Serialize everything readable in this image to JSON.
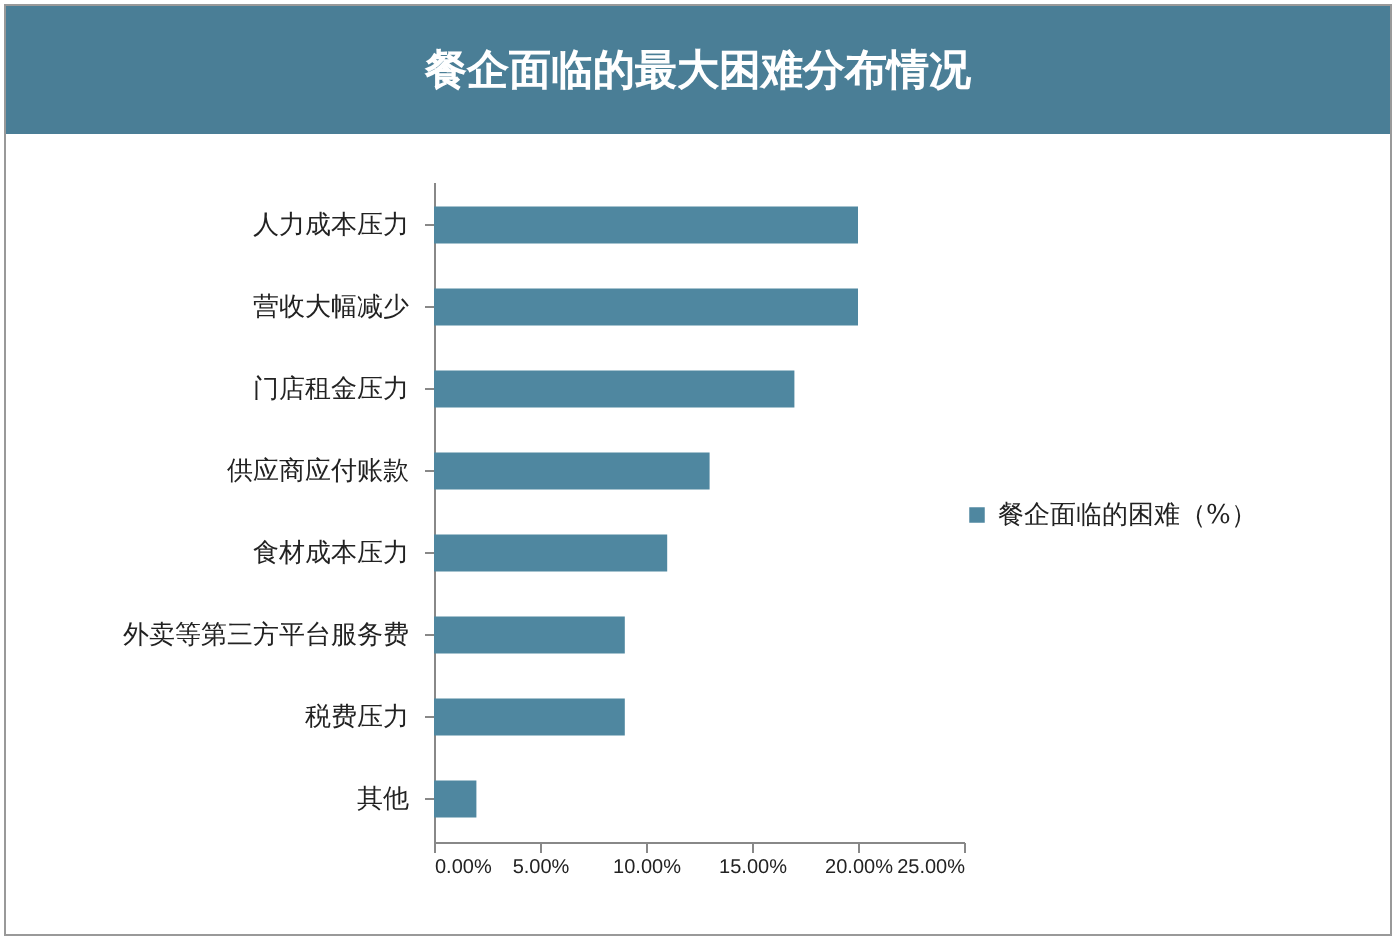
{
  "chart_data": {
    "type": "bar",
    "orientation": "horizontal",
    "title": "餐企面临的最大困难分布情况",
    "categories": [
      "人力成本压力",
      "营收大幅减少",
      "门店租金压力",
      "供应商应付账款",
      "食材成本压力",
      "外卖等第三方平台服务费",
      "税费压力",
      "其他"
    ],
    "series": [
      {
        "name": "餐企面临的困难（%）",
        "color": "#4f87a0",
        "values": [
          20,
          20,
          17,
          13,
          11,
          9,
          9,
          2
        ]
      }
    ],
    "xlim": [
      0,
      25
    ],
    "xticks": [
      {
        "value": 0,
        "label": "0.00%"
      },
      {
        "value": 5,
        "label": "5.00%"
      },
      {
        "value": 10,
        "label": "10.00%"
      },
      {
        "value": 15,
        "label": "15.00%"
      },
      {
        "value": 20,
        "label": "20.00%"
      },
      {
        "value": 25,
        "label": "25.00%"
      }
    ],
    "grid": false,
    "legend": "right"
  }
}
